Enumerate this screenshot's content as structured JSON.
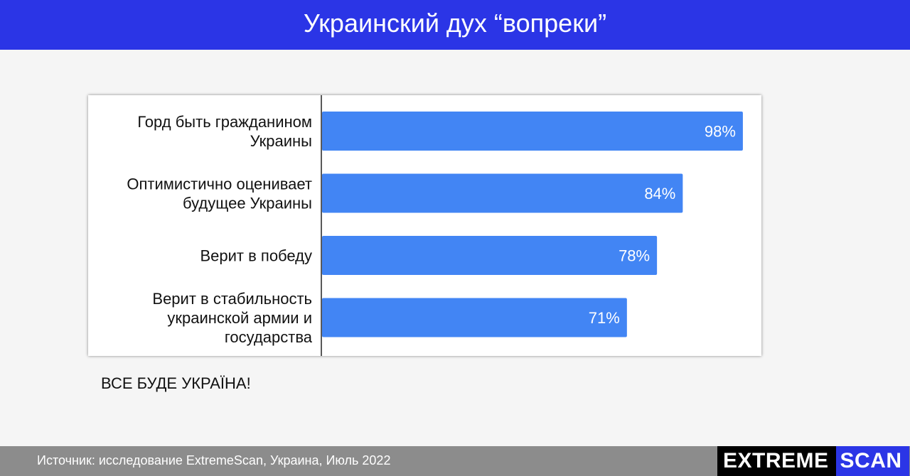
{
  "header": {
    "title": "Украинский дух “вопреки”"
  },
  "chart_data": {
    "type": "bar",
    "orientation": "horizontal",
    "categories": [
      [
        "Горд быть гражданином",
        "Украины"
      ],
      [
        "Оптимистично оценивает",
        "будущее Украины"
      ],
      [
        "Верит в победу"
      ],
      [
        "Верит в стабильность",
        "украинской армии и",
        "государства"
      ]
    ],
    "values": [
      98,
      84,
      78,
      71
    ],
    "value_labels": [
      "98%",
      "84%",
      "78%",
      "71%"
    ],
    "xlim": [
      0,
      100
    ],
    "bar_color": "#4285f4",
    "grid": false
  },
  "tagline": "ВСЕ БУДЕ УКРАЇНА!",
  "footer": {
    "source": "Источник: исследование ExtremeScan, Украина, Июль 2022",
    "logo_part1": "EXTREME",
    "logo_part2": "SCAN"
  },
  "colors": {
    "header_bg": "#2b35e6",
    "footer_bg": "#8c8c8c",
    "bar": "#4285f4",
    "logo_black": "#000000",
    "logo_blue": "#2b35e6"
  }
}
